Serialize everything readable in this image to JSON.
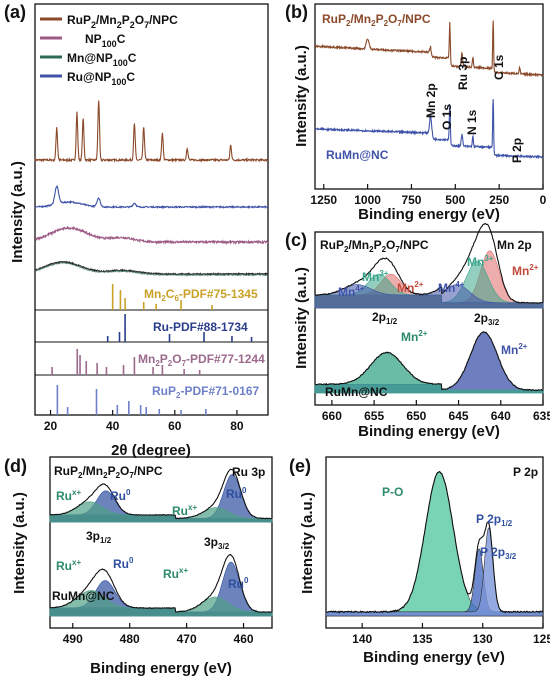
{
  "colors": {
    "brown": "#8B4A2B",
    "blue": "#3F53A8",
    "pink": "#9C5A84",
    "green": "#2E6B55",
    "gray": "#2F2F2F",
    "gold": "#C9A227",
    "navy": "#2A3E8C",
    "mauve": "#9C6A8C",
    "periwinkle": "#6E80C8",
    "mn2": "#E06A6A",
    "mn3": "#3AA58A",
    "mn4": "#3F53A8",
    "ru0": "#2F4FA0",
    "rux": "#4FA086",
    "po": "#58C9A4",
    "p2p12": "#4A6CC0",
    "p2p32": "#7B95D8"
  },
  "chart_data": [
    {
      "panel": "(a)",
      "type": "line",
      "xlabel": "2θ (degree)",
      "ylabel": "Intensity (a.u.)",
      "xlim": [
        15,
        90
      ],
      "xticks": [
        20,
        40,
        60,
        80
      ],
      "legend": [
        "RuP2/Mn2P2O7/NPC",
        "NP100C",
        "Mn@NP100C",
        "Ru@NP100C"
      ],
      "series": [
        {
          "name": "RuP2/Mn2P2O7/NPC",
          "peaks_2theta": [
            22,
            28.5,
            30.5,
            35.5,
            47,
            50,
            56,
            64,
            78
          ]
        },
        {
          "name": "Ru@NP100C",
          "peaks_2theta": [
            22,
            35.5,
            47
          ]
        },
        {
          "name": "Mn@NP100C",
          "peaks_2theta": [
            25
          ]
        },
        {
          "name": "NP100C",
          "peaks_2theta": [
            23
          ]
        }
      ],
      "references": [
        {
          "label": "Mn2C6-PDF#75-1345",
          "lines": [
            40,
            42.5,
            44,
            50,
            54,
            62,
            72
          ]
        },
        {
          "label": "Ru-PDF#88-1734",
          "lines": [
            38.4,
            42.2,
            44,
            58.3,
            69.4,
            78.4,
            84.7
          ]
        },
        {
          "label": "Mn2P2O7-PDF#77-1244",
          "lines": [
            20.5,
            28.6,
            29.5,
            31.5,
            35,
            38,
            43.5,
            47,
            53,
            56,
            63,
            68
          ]
        },
        {
          "label": "RuP2-PDF#71-0167",
          "lines": [
            22.2,
            25.5,
            34.8,
            41.5,
            45.2,
            49,
            50.8,
            55,
            62,
            70
          ]
        }
      ]
    },
    {
      "panel": "(b)",
      "type": "line",
      "xlabel": "Binding energy (eV)",
      "ylabel": "Intensity (a.u.)",
      "xlim": [
        1300,
        0
      ],
      "xticks": [
        1250,
        1000,
        750,
        500,
        250,
        0
      ],
      "series": [
        {
          "name": "RuP2/Mn2P2O7/NPC"
        },
        {
          "name": "RuMn@NC"
        }
      ],
      "peak_labels": [
        "Mn 2p",
        "O 1s",
        "Ru 3p",
        "N 1s",
        "C 1s",
        "P 2p"
      ]
    },
    {
      "panel": "(c)",
      "type": "line",
      "title": "Mn 2p",
      "xlabel": "Binding energy (eV)",
      "ylabel": "Intensity (a.u.)",
      "xlim": [
        662,
        635
      ],
      "xticks": [
        660,
        655,
        650,
        645,
        640,
        635
      ],
      "series": [
        {
          "name": "RuP2/Mn2P2O7/NPC"
        },
        {
          "name": "RuMn@NC"
        }
      ],
      "peak_labels": [
        "Mn4+",
        "Mn3+",
        "Mn2+",
        "Mn4+",
        "Mn3+",
        "Mn2+",
        "2p1/2",
        "2p3/2",
        "Mn2+",
        "Mn2+"
      ]
    },
    {
      "panel": "(d)",
      "type": "line",
      "title": "Ru 3p",
      "xlabel": "Binding energy (eV)",
      "ylabel": "Intensity (a.u.)",
      "xlim": [
        494,
        455
      ],
      "xticks": [
        490,
        480,
        470,
        460
      ],
      "series": [
        {
          "name": "RuP2/Mn2P2O7/NPC"
        },
        {
          "name": "RuMn@NC"
        }
      ],
      "peak_labels": [
        "Rux+",
        "Ru0",
        "Rux+",
        "Ru0",
        "3p1/2",
        "3p3/2",
        "Rux+",
        "Ru0",
        "Rux+",
        "Ru0"
      ]
    },
    {
      "panel": "(e)",
      "type": "line",
      "title": "P 2p",
      "xlabel": "Binding energy (eV)",
      "ylabel": "Intensity (a.u.)",
      "xlim": [
        143,
        125
      ],
      "xticks": [
        140,
        135,
        130,
        125
      ],
      "peak_labels": [
        "P-O",
        "P 2p1/2",
        "P 2p3/2"
      ]
    }
  ],
  "text": {
    "a_label": "(a)",
    "b_label": "(b)",
    "c_label": "(c)",
    "d_label": "(d)",
    "e_label": "(e)",
    "a_leg1_main": "RuP",
    "a_leg1_s1": "2",
    "a_leg1_m2": "/Mn",
    "a_leg1_s2": "2",
    "a_leg1_m3": "P",
    "a_leg1_s3": "2",
    "a_leg1_m4": "O",
    "a_leg1_s4": "7",
    "a_leg1_m5": "/NPC",
    "a_leg2_main": "NP",
    "a_leg2_s1": "100",
    "a_leg2_m2": "C",
    "a_leg3_main": "Mn@NP",
    "a_leg3_s1": "100",
    "a_leg3_m2": "C",
    "a_leg4_main": "Ru@NP",
    "a_leg4_s1": "100",
    "a_leg4_m2": "C",
    "a_ref1_m1": "Mn",
    "a_ref1_s1": "2",
    "a_ref1_m2": "C",
    "a_ref1_s2": "6",
    "a_ref1_m3": "-PDF#75-1345",
    "a_ref2": "Ru-PDF#88-1734",
    "a_ref3_m1": "Mn",
    "a_ref3_s1": "2",
    "a_ref3_m2": "P",
    "a_ref3_s2": "2",
    "a_ref3_m3": "O",
    "a_ref3_s3": "7",
    "a_ref3_m4": "-PDF#77-1244",
    "a_ref4_m1": "RuP",
    "a_ref4_s1": "2",
    "a_ref4_m2": "-PDF#71-0167",
    "a_xlabel": "2θ (degree)",
    "a_ylabel": "Intensity (a.u.)",
    "b_s1": "RuP",
    "b_s1s": "2",
    "b_s1b": "/Mn",
    "b_s1bs": "2",
    "b_s1c": "P",
    "b_s1cs": "2",
    "b_s1d": "O",
    "b_s1ds": "7",
    "b_s1e": "/NPC",
    "b_s2": "RuMn@NC",
    "b_mn2p": "Mn 2p",
    "b_o1s": "O 1s",
    "b_ru3p": "Ru 3p",
    "b_n1s": "N 1s",
    "b_c1s": "C 1s",
    "b_p2p": "P 2p",
    "b_xlabel": "Binding energy (eV)",
    "b_ylabel": "Intensity (a.u.)",
    "c_s1": "RuP",
    "c_s1s": "2",
    "c_s1b": "/Mn",
    "c_s1bs": "2",
    "c_s1c": "P",
    "c_s1cs": "2",
    "c_s1d": "O",
    "c_s1ds": "7",
    "c_s1e": "/NPC",
    "c_title": "Mn 2p",
    "c_mn": "Mn",
    "c_4p": "4+",
    "c_3p": "3+",
    "c_2p": "2+",
    "c_2p12": "2p",
    "c_2p12s": "1/2",
    "c_2p32": "2p",
    "c_2p32s": "3/2",
    "c_s2": "RuMn@NC",
    "c_xlabel": "Binding energy (eV)",
    "c_ylabel": "Intensity (a.u.)",
    "d_s1": "RuP",
    "d_s1s": "2",
    "d_s1b": "/Mn",
    "d_s1bs": "2",
    "d_s1c": "P",
    "d_s1cs": "2",
    "d_s1d": "O",
    "d_s1ds": "7",
    "d_s1e": "/NPC",
    "d_title": "Ru 3p",
    "d_ru": "Ru",
    "d_xp": "x+",
    "d_0": "0",
    "d_3p12": "3p",
    "d_3p12s": "1/2",
    "d_3p32": "3p",
    "d_3p32s": "3/2",
    "d_s2": "RuMn@NC",
    "d_xlabel": "Binding energy (eV)",
    "d_ylabel": "Intensity (a.u.)",
    "e_title": "P 2p",
    "e_po": "P-O",
    "e_p12": "P 2p",
    "e_p12s": "1/2",
    "e_p32": "P 2p",
    "e_p32s": "3/2",
    "e_xlabel": "Binding energy (eV)",
    "e_ylabel": "Intensity (a.u.)"
  }
}
